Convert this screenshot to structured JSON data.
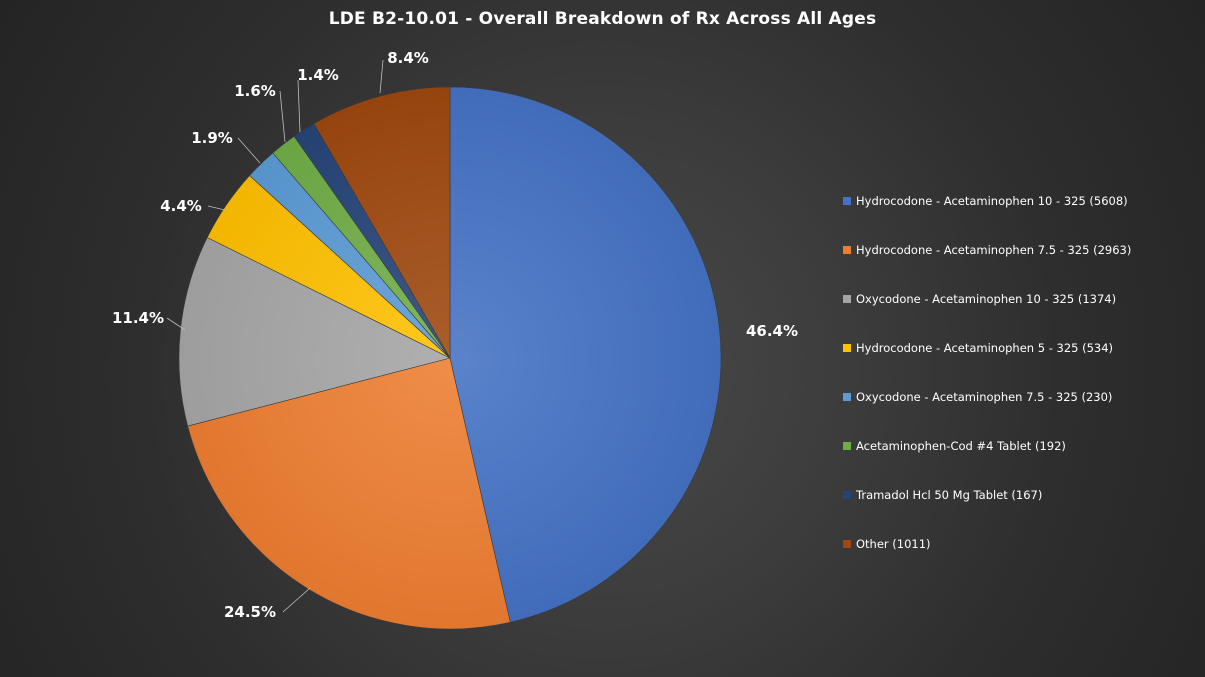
{
  "chart_data": {
    "type": "pie",
    "title": "LDE B2-10.01 - Overall Breakdown of Rx Across All Ages",
    "legend_position": "right",
    "slices": [
      {
        "label": "Hydrocodone - Acetaminophen 10 - 325 (5608)",
        "value": 5608,
        "percent_label": "46.4%",
        "color": "#4472c4"
      },
      {
        "label": "Hydrocodone - Acetaminophen 7.5 - 325 (2963)",
        "value": 2963,
        "percent_label": "24.5%",
        "color": "#ed7d31"
      },
      {
        "label": "Oxycodone - Acetaminophen 10 - 325 (1374)",
        "value": 1374,
        "percent_label": "11.4%",
        "color": "#a5a5a5"
      },
      {
        "label": "Hydrocodone - Acetaminophen 5 - 325 (534)",
        "value": 534,
        "percent_label": "4.4%",
        "color": "#ffc000"
      },
      {
        "label": "Oxycodone - Acetaminophen 7.5 - 325 (230)",
        "value": 230,
        "percent_label": "1.9%",
        "color": "#5b9bd5"
      },
      {
        "label": "Acetaminophen-Cod #4 Tablet (192)",
        "value": 192,
        "percent_label": "1.6%",
        "color": "#70ad47"
      },
      {
        "label": "Tramadol Hcl 50 Mg Tablet (167)",
        "value": 167,
        "percent_label": "1.4%",
        "color": "#264478"
      },
      {
        "label": "Other (1011)",
        "value": 1011,
        "percent_label": "8.4%",
        "color": "#9e480e"
      }
    ]
  }
}
